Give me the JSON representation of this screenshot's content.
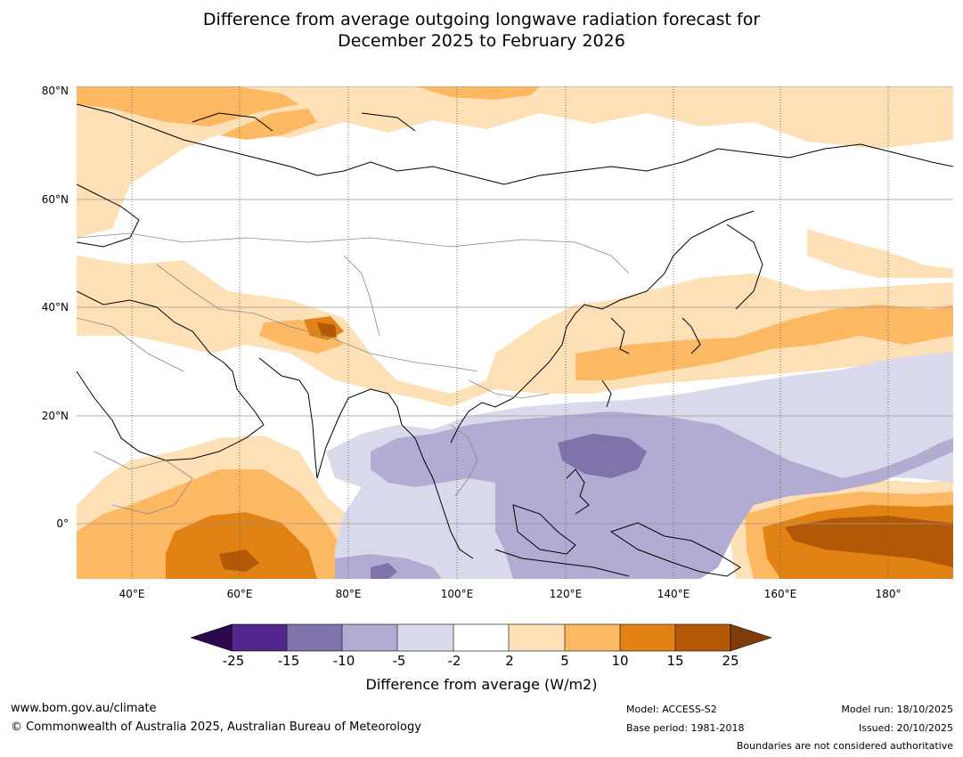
{
  "title": {
    "line1": "Difference from average outgoing longwave radiation forecast for",
    "line2": "December 2025 to February 2026"
  },
  "map": {
    "lat_labels": [
      "80°N",
      "60°N",
      "40°N",
      "20°N",
      "0°"
    ],
    "lon_labels": [
      "40°E",
      "60°E",
      "80°E",
      "100°E",
      "120°E",
      "140°E",
      "160°E",
      "180°"
    ],
    "lon_range": [
      30,
      191
    ],
    "lat_range": [
      -10,
      80
    ]
  },
  "colorbar": {
    "ticks": [
      "-25",
      "-15",
      "-10",
      "-5",
      "-2",
      "2",
      "5",
      "10",
      "15",
      "25"
    ],
    "label": "Difference from average (W/m2)",
    "colors": {
      "below_min": "#2d0a4e",
      "bin_1": "#54278f",
      "bin_2": "#8073ac",
      "bin_3": "#b2abd2",
      "bin_4": "#d8daeb",
      "bin_5": "#ffffff",
      "bin_6": "#fee0b6",
      "bin_7": "#fdb863",
      "bin_8": "#e08214",
      "bin_9": "#b35806",
      "above_max": "#7f3b08"
    }
  },
  "footer": {
    "website": "www.bom.gov.au/climate",
    "copyright": "© Commonwealth of Australia 2025, Australian Bureau of Meteorology",
    "model": "Model: ACCESS-S2",
    "base_period": "Base period: 1981-2018",
    "model_run": "Model run: 18/10/2025",
    "issued": "Issued: 20/10/2025",
    "disclaimer": "Boundaries are not considered authoritative"
  }
}
